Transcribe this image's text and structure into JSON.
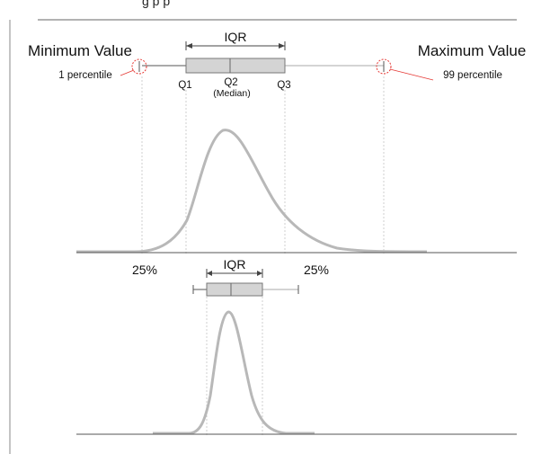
{
  "header": {
    "caption_fragment": "g                                                    p  p"
  },
  "top": {
    "min_label": "Minimum Value",
    "max_label": "Maximum Value",
    "min_percentile": "1 percentile",
    "max_percentile": "99 percentile",
    "iqr_label": "IQR",
    "q1": "Q1",
    "q2": "Q2",
    "median": "(Median)",
    "q3": "Q3",
    "left_pct": "25%",
    "right_pct": "25%"
  },
  "bottom": {
    "iqr_label": "IQR"
  },
  "colors": {
    "box_fill": "#d4d4d4",
    "curve": "#b8b8b8",
    "marker": "#e53935",
    "guide": "#bdbdbd"
  }
}
